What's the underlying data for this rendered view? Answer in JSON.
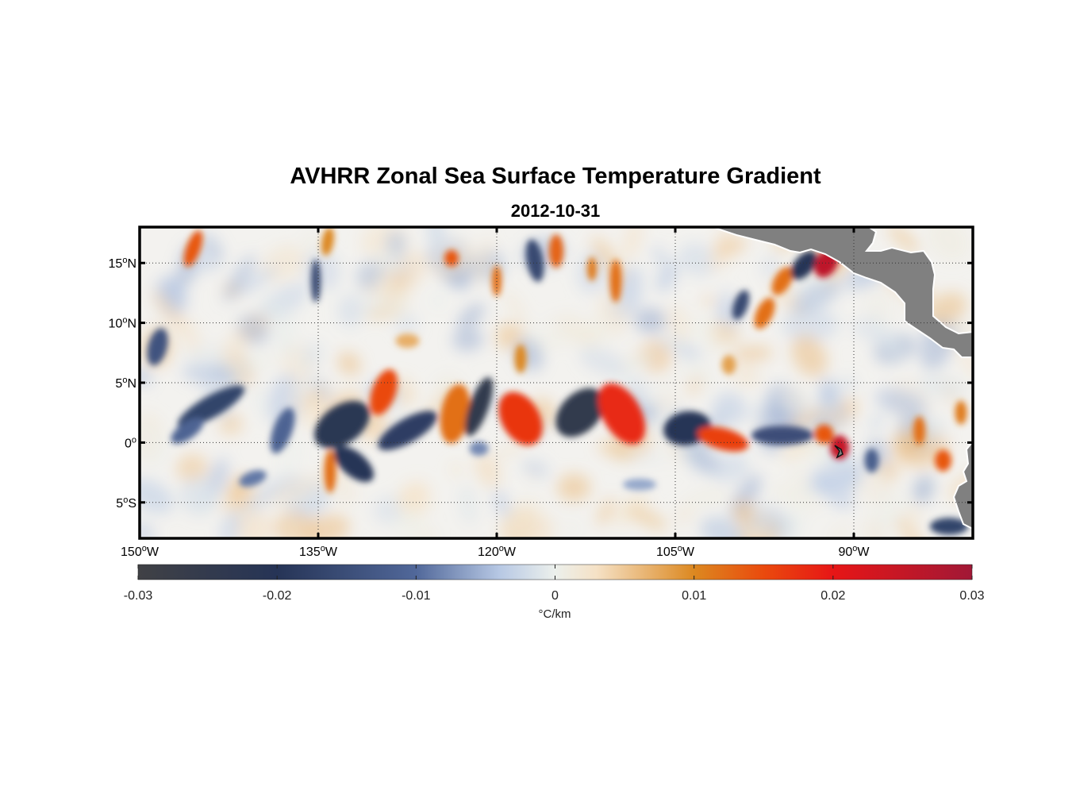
{
  "title": "AVHRR Zonal Sea Surface Temperature Gradient",
  "subtitle": "2012-10-31",
  "map": {
    "lon_range": [
      -150,
      -80
    ],
    "lat_range": [
      -8,
      18
    ],
    "lat_ticks": [
      {
        "value": 15,
        "label": "15",
        "hemi": "N"
      },
      {
        "value": 10,
        "label": "10",
        "hemi": "N"
      },
      {
        "value": 5,
        "label": "5",
        "hemi": "N"
      },
      {
        "value": 0,
        "label": "0",
        "hemi": ""
      },
      {
        "value": -5,
        "label": "5",
        "hemi": "S"
      }
    ],
    "lon_ticks": [
      {
        "value": -150,
        "label": "150",
        "hemi": "W"
      },
      {
        "value": -135,
        "label": "135",
        "hemi": "W"
      },
      {
        "value": -120,
        "label": "120",
        "hemi": "W"
      },
      {
        "value": -105,
        "label": "105",
        "hemi": "W"
      },
      {
        "value": -90,
        "label": "90",
        "hemi": "W"
      }
    ],
    "grid": "dotted",
    "land_color": "#808080",
    "background_color": "#f4f1ec",
    "features": [
      {
        "lon": -133.0,
        "lat": 1.5,
        "rx": 2.6,
        "ry": 1.6,
        "angle": -35,
        "value": -0.022
      },
      {
        "lon": -129.5,
        "lat": 4.2,
        "rx": 1.0,
        "ry": 2.0,
        "angle": 20,
        "value": 0.015
      },
      {
        "lon": -127.5,
        "lat": 1.0,
        "rx": 2.8,
        "ry": 1.0,
        "angle": -30,
        "value": -0.018
      },
      {
        "lon": -123.5,
        "lat": 2.4,
        "rx": 1.2,
        "ry": 2.5,
        "angle": 10,
        "value": 0.012
      },
      {
        "lon": -121.5,
        "lat": 3.0,
        "rx": 0.8,
        "ry": 2.6,
        "angle": 20,
        "value": -0.025
      },
      {
        "lon": -118.0,
        "lat": 2.0,
        "rx": 1.6,
        "ry": 2.4,
        "angle": -30,
        "value": 0.017
      },
      {
        "lon": -113.0,
        "lat": 2.5,
        "rx": 2.4,
        "ry": 1.6,
        "angle": -45,
        "value": -0.025
      },
      {
        "lon": -109.5,
        "lat": 2.4,
        "rx": 1.6,
        "ry": 2.8,
        "angle": -30,
        "value": 0.018
      },
      {
        "lon": -104.0,
        "lat": 1.2,
        "rx": 2.0,
        "ry": 1.4,
        "angle": -10,
        "value": -0.02
      },
      {
        "lon": -101.0,
        "lat": 0.3,
        "rx": 2.2,
        "ry": 0.9,
        "angle": 15,
        "value": 0.016
      },
      {
        "lon": -96.0,
        "lat": 0.6,
        "rx": 2.6,
        "ry": 0.8,
        "angle": 0,
        "value": -0.015
      },
      {
        "lon": -92.5,
        "lat": 0.7,
        "rx": 0.8,
        "ry": 0.8,
        "angle": 0,
        "value": 0.014
      },
      {
        "lon": -91.2,
        "lat": -0.4,
        "rx": 0.8,
        "ry": 1.0,
        "angle": 0,
        "value": 0.025
      },
      {
        "lon": -132.0,
        "lat": -1.8,
        "rx": 2.0,
        "ry": 1.0,
        "angle": 40,
        "value": -0.02
      },
      {
        "lon": -134.0,
        "lat": -2.4,
        "rx": 0.5,
        "ry": 1.8,
        "angle": 0,
        "value": 0.012
      },
      {
        "lon": -148.5,
        "lat": 8.0,
        "rx": 0.8,
        "ry": 1.6,
        "angle": 15,
        "value": -0.014
      },
      {
        "lon": -144.0,
        "lat": 3.0,
        "rx": 3.2,
        "ry": 0.9,
        "angle": -30,
        "value": -0.017
      },
      {
        "lon": -146.0,
        "lat": 1.0,
        "rx": 1.6,
        "ry": 0.7,
        "angle": -35,
        "value": -0.011
      },
      {
        "lon": -145.5,
        "lat": 16.2,
        "rx": 0.6,
        "ry": 1.6,
        "angle": 20,
        "value": 0.014
      },
      {
        "lon": -135.2,
        "lat": 13.5,
        "rx": 0.4,
        "ry": 1.8,
        "angle": 0,
        "value": -0.016
      },
      {
        "lon": -134.2,
        "lat": 16.8,
        "rx": 0.5,
        "ry": 1.2,
        "angle": 10,
        "value": 0.01
      },
      {
        "lon": -123.8,
        "lat": 15.4,
        "rx": 0.6,
        "ry": 0.7,
        "angle": 0,
        "value": 0.014
      },
      {
        "lon": -120.0,
        "lat": 13.5,
        "rx": 0.4,
        "ry": 1.3,
        "angle": 0,
        "value": 0.012
      },
      {
        "lon": -116.8,
        "lat": 15.2,
        "rx": 0.7,
        "ry": 1.8,
        "angle": -10,
        "value": -0.016
      },
      {
        "lon": -115.0,
        "lat": 16.0,
        "rx": 0.6,
        "ry": 1.4,
        "angle": 0,
        "value": 0.013
      },
      {
        "lon": -112.0,
        "lat": 14.5,
        "rx": 0.4,
        "ry": 1.0,
        "angle": 0,
        "value": 0.011
      },
      {
        "lon": -110.0,
        "lat": 13.5,
        "rx": 0.5,
        "ry": 1.8,
        "angle": 0,
        "value": 0.012
      },
      {
        "lon": -99.5,
        "lat": 11.5,
        "rx": 0.6,
        "ry": 1.3,
        "angle": 20,
        "value": -0.016
      },
      {
        "lon": -97.5,
        "lat": 10.8,
        "rx": 0.7,
        "ry": 1.4,
        "angle": 25,
        "value": 0.012
      },
      {
        "lon": -96.0,
        "lat": 13.5,
        "rx": 0.7,
        "ry": 1.3,
        "angle": 30,
        "value": 0.012
      },
      {
        "lon": -94.2,
        "lat": 14.8,
        "rx": 0.8,
        "ry": 1.4,
        "angle": 40,
        "value": -0.02
      },
      {
        "lon": -92.3,
        "lat": 15.0,
        "rx": 0.9,
        "ry": 1.3,
        "angle": 30,
        "value": 0.026
      },
      {
        "lon": -138.0,
        "lat": 1.0,
        "rx": 0.8,
        "ry": 2.0,
        "angle": 20,
        "value": -0.011
      },
      {
        "lon": -127.5,
        "lat": 8.5,
        "rx": 1.0,
        "ry": 0.6,
        "angle": 0,
        "value": 0.007
      },
      {
        "lon": -118.0,
        "lat": 7.0,
        "rx": 0.5,
        "ry": 1.2,
        "angle": 0,
        "value": 0.01
      },
      {
        "lon": -100.5,
        "lat": 6.5,
        "rx": 0.6,
        "ry": 0.8,
        "angle": 0,
        "value": 0.008
      },
      {
        "lon": -88.5,
        "lat": -1.5,
        "rx": 0.6,
        "ry": 1.0,
        "angle": 0,
        "value": -0.012
      },
      {
        "lon": -84.5,
        "lat": 1.0,
        "rx": 0.5,
        "ry": 1.2,
        "angle": 0,
        "value": 0.012
      },
      {
        "lon": -82.5,
        "lat": -1.5,
        "rx": 0.7,
        "ry": 0.9,
        "angle": 0,
        "value": 0.014
      },
      {
        "lon": -81.0,
        "lat": 2.5,
        "rx": 0.5,
        "ry": 1.0,
        "angle": 0,
        "value": 0.011
      },
      {
        "lon": -82.0,
        "lat": -7.0,
        "rx": 1.6,
        "ry": 0.7,
        "angle": 0,
        "value": -0.017
      },
      {
        "lon": -121.5,
        "lat": -0.5,
        "rx": 0.8,
        "ry": 0.6,
        "angle": 0,
        "value": -0.008
      },
      {
        "lon": -140.5,
        "lat": -3.0,
        "rx": 1.2,
        "ry": 0.6,
        "angle": -20,
        "value": -0.009
      },
      {
        "lon": -108.0,
        "lat": -3.5,
        "rx": 1.4,
        "ry": 0.5,
        "angle": 0,
        "value": -0.006
      }
    ]
  },
  "colorbar": {
    "min": -0.03,
    "max": 0.03,
    "ticks": [
      "-0.03",
      "-0.02",
      "-0.01",
      "0",
      "0.01",
      "0.02",
      "0.03"
    ],
    "label": "°C/km",
    "stops": [
      {
        "v": -0.03,
        "c": "#404145"
      },
      {
        "v": -0.02,
        "c": "#263456"
      },
      {
        "v": -0.01,
        "c": "#51689a"
      },
      {
        "v": -0.004,
        "c": "#b7c8e4"
      },
      {
        "v": 0,
        "c": "#ecf0ec"
      },
      {
        "v": 0.003,
        "c": "#f5e1c5"
      },
      {
        "v": 0.01,
        "c": "#dc8820"
      },
      {
        "v": 0.015,
        "c": "#ea4a0d"
      },
      {
        "v": 0.02,
        "c": "#e71616"
      },
      {
        "v": 0.03,
        "c": "#a11836"
      }
    ]
  }
}
